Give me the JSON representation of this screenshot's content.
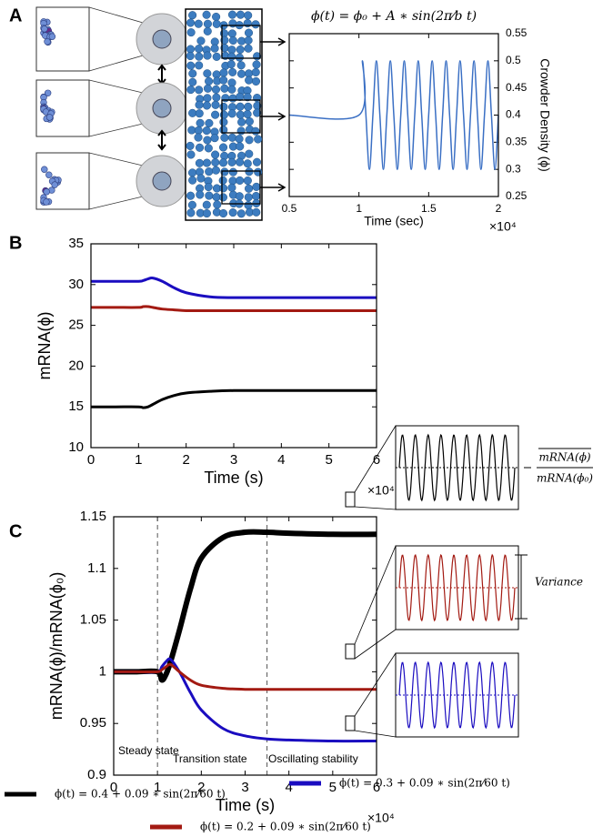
{
  "panel_labels": [
    "A",
    "B",
    "C"
  ],
  "chart_data": [
    {
      "type": "line",
      "title": "ϕ(t) = ϕ₀ + A ∗ sin(2π⁄b t)",
      "x_label": "Time (sec)",
      "y_label": "Crowder Density (ϕ)",
      "x_multiplier": "×10⁴",
      "y_axis_side": "right",
      "xlim": [
        0.5,
        2
      ],
      "xticks": [
        0.5,
        1,
        1.5,
        2
      ],
      "ylim": [
        0.25,
        0.55
      ],
      "yticks": [
        0.25,
        0.3,
        0.35,
        0.4,
        0.45,
        0.5,
        0.55
      ],
      "x": [
        0.5,
        1.0,
        1.025,
        1.05,
        1.075,
        1.1,
        1.125,
        1.15,
        1.175,
        1.2,
        1.225,
        1.25,
        1.275,
        1.3,
        1.325,
        1.35,
        1.375,
        1.4,
        1.425,
        1.45,
        1.475,
        1.5,
        1.525,
        1.55,
        1.575,
        1.6,
        1.625,
        1.65,
        1.675,
        1.7,
        1.725,
        1.75,
        1.775,
        1.8,
        1.825,
        1.85,
        1.875,
        1.9,
        1.925,
        1.95,
        1.975,
        2.0
      ],
      "series": [
        {
          "color": "#3a6fc4",
          "values": [
            0.4,
            0.4,
            0.5,
            0.4,
            0.3,
            0.4,
            0.5,
            0.4,
            0.3,
            0.4,
            0.5,
            0.4,
            0.3,
            0.4,
            0.5,
            0.4,
            0.3,
            0.4,
            0.5,
            0.4,
            0.3,
            0.4,
            0.5,
            0.4,
            0.3,
            0.4,
            0.5,
            0.4,
            0.3,
            0.4,
            0.5,
            0.4,
            0.3,
            0.4,
            0.5,
            0.4,
            0.3,
            0.4,
            0.5,
            0.4,
            0.3,
            0.4
          ]
        }
      ]
    },
    {
      "type": "line",
      "x_label": "Time (s)",
      "y_label": "mRNA(ϕ)",
      "x_multiplier": "×10⁴",
      "y_axis_side": "left",
      "xlim": [
        0,
        6
      ],
      "xticks": [
        0,
        1,
        2,
        3,
        4,
        5,
        6
      ],
      "ylim": [
        10,
        35
      ],
      "yticks": [
        10,
        15,
        20,
        25,
        30,
        35
      ],
      "x": [
        0,
        0.5,
        1,
        1.1,
        1.2,
        1.3,
        1.5,
        1.75,
        2,
        2.5,
        3,
        4,
        5,
        6
      ],
      "series": [
        {
          "color": "#1a0cc0",
          "values": [
            30.4,
            30.4,
            30.4,
            30.5,
            30.7,
            30.8,
            30.4,
            29.6,
            29.0,
            28.5,
            28.4,
            28.4,
            28.4,
            28.4
          ]
        },
        {
          "color": "#a31a12",
          "values": [
            27.2,
            27.2,
            27.2,
            27.3,
            27.3,
            27.2,
            27.0,
            26.9,
            26.8,
            26.8,
            26.8,
            26.8,
            26.8,
            26.8
          ]
        },
        {
          "color": "#000000",
          "values": [
            15,
            15,
            15,
            14.9,
            15.0,
            15.3,
            15.9,
            16.4,
            16.7,
            16.9,
            17.0,
            17.0,
            17.0,
            17.0
          ]
        }
      ]
    },
    {
      "type": "line",
      "x_label": "Time (s)",
      "y_label": "mRNA(ϕ)/mRNA(ϕ₀)",
      "x_multiplier": "×10⁴",
      "y_axis_side": "left",
      "xlim": [
        0,
        6
      ],
      "xticks": [
        0,
        1,
        2,
        3,
        4,
        5,
        6
      ],
      "ylim": [
        0.9,
        1.15
      ],
      "yticks": [
        0.9,
        0.95,
        1,
        1.05,
        1.1,
        1.15
      ],
      "vlines": [
        1,
        3.5
      ],
      "annotations": [
        "Steady state",
        "Transition state",
        "Oscillating stability"
      ],
      "inset_mean_label": {
        "numerator": "mRNA(ϕ)",
        "denominator": "mRNA(ϕ₀)"
      },
      "inset_variance_label": "Variance",
      "legend": "bottom",
      "x": [
        0,
        0.5,
        1,
        1.1,
        1.2,
        1.3,
        1.5,
        1.75,
        2,
        2.5,
        3,
        3.5,
        4,
        5,
        6
      ],
      "series": [
        {
          "name": "ϕ(t) = 0.4 + 0.09 ∗ sin(2π⁄60 t)",
          "color": "#000000",
          "values": [
            1,
            1,
            1,
            0.992,
            0.998,
            1.01,
            1.04,
            1.08,
            1.11,
            1.13,
            1.135,
            1.135,
            1.134,
            1.133,
            1.133
          ]
        },
        {
          "name": "ϕ(t) = 0.3 + 0.09 ∗ sin(2π⁄60 t)",
          "color": "#1a0cc0",
          "values": [
            1,
            1,
            1,
            1.005,
            1.01,
            1.012,
            1.0,
            0.98,
            0.963,
            0.945,
            0.938,
            0.935,
            0.934,
            0.933,
            0.933
          ]
        },
        {
          "name": "ϕ(t) = 0.2 + 0.09 ∗ sin(2π⁄60 t)",
          "color": "#a31a12",
          "values": [
            1,
            1,
            1,
            1.002,
            1.005,
            1.007,
            1.0,
            0.992,
            0.987,
            0.984,
            0.983,
            0.983,
            0.983,
            0.983,
            0.983
          ]
        }
      ]
    }
  ]
}
